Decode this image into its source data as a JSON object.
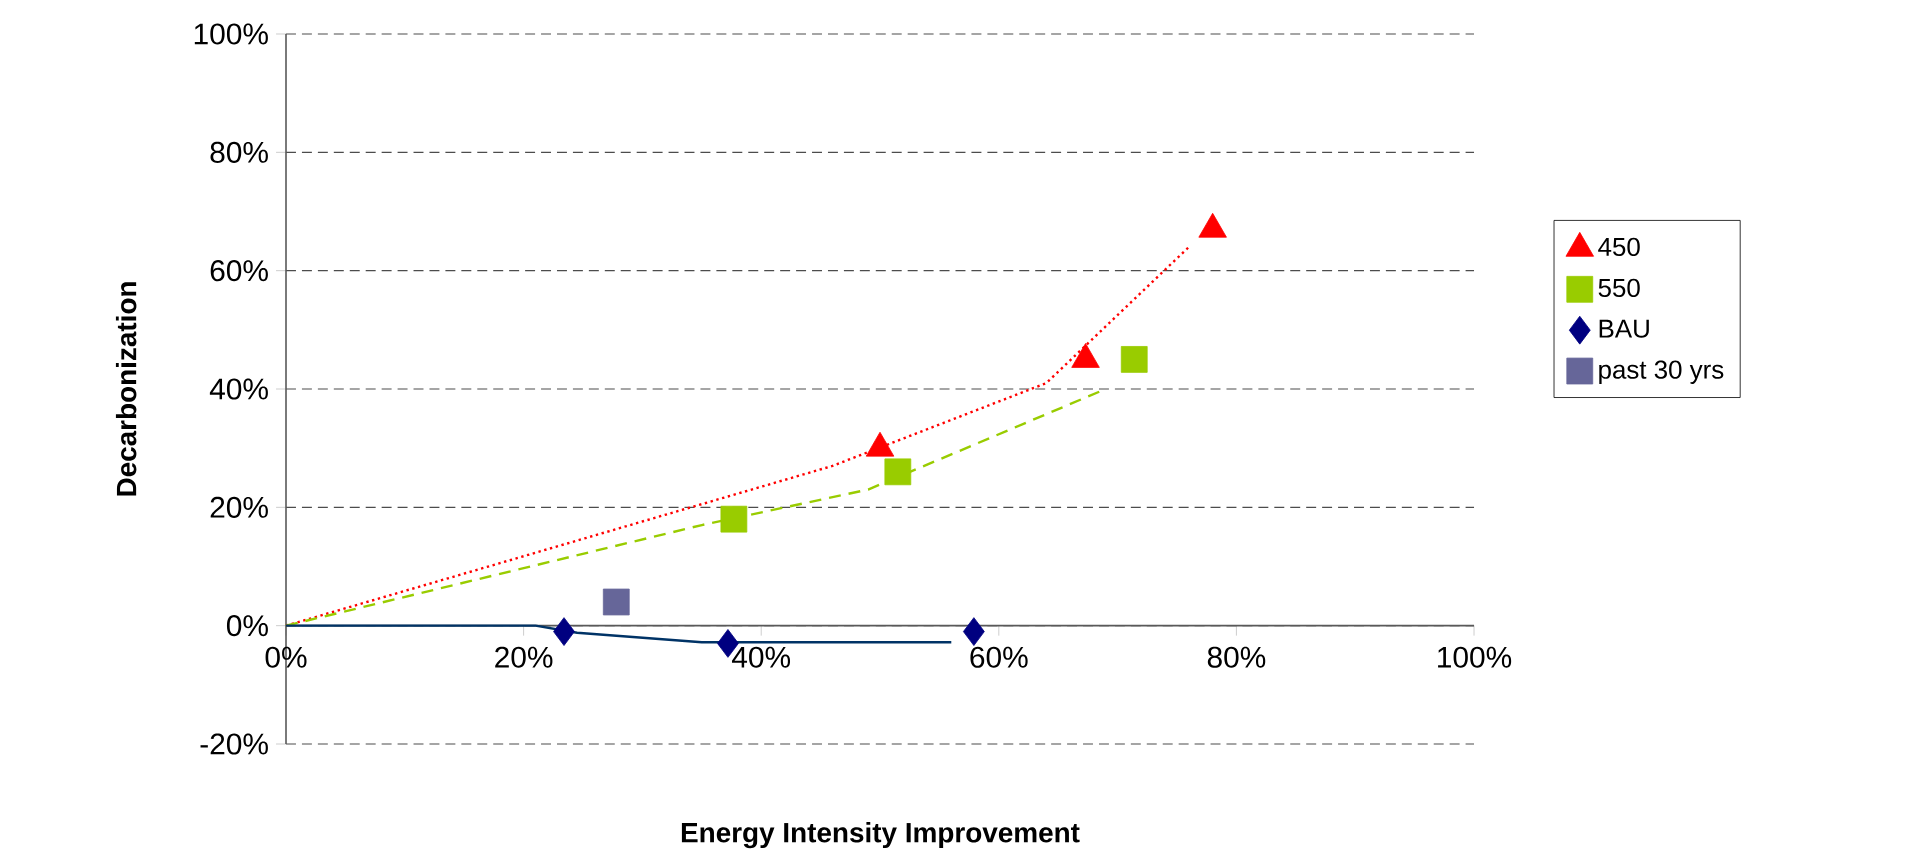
{
  "chart_data": {
    "type": "scatter",
    "xlabel": "Energy Intensity Improvement",
    "ylabel": "Decarbonization",
    "xlim": [
      0,
      100
    ],
    "ylim": [
      -20,
      100
    ],
    "xticks": [
      {
        "value": 0,
        "label": "0%"
      },
      {
        "value": 20,
        "label": "20%"
      },
      {
        "value": 40,
        "label": "40%"
      },
      {
        "value": 60,
        "label": "60%"
      },
      {
        "value": 80,
        "label": "80%"
      },
      {
        "value": 100,
        "label": "100%"
      }
    ],
    "yticks": [
      {
        "value": -20,
        "label": "-20%"
      },
      {
        "value": 0,
        "label": "0%"
      },
      {
        "value": 20,
        "label": "20%"
      },
      {
        "value": 40,
        "label": "40%"
      },
      {
        "value": 60,
        "label": "60%"
      },
      {
        "value": 80,
        "label": "80%"
      },
      {
        "value": 100,
        "label": "100%"
      }
    ],
    "grid": "y",
    "legend": "right",
    "series": [
      {
        "name": "450",
        "color": "#ff0000",
        "marker": "triangle",
        "x": [
          50,
          67.3,
          78
        ],
        "values": [
          30,
          45,
          67
        ]
      },
      {
        "name": "550",
        "color": "#99cc00",
        "marker": "square",
        "x": [
          37.7,
          51.5,
          71.4
        ],
        "values": [
          18,
          26,
          45
        ]
      },
      {
        "name": "BAU",
        "color": "#000080",
        "marker": "diamond",
        "x": [
          23.4,
          37.2,
          57.9
        ],
        "values": [
          -1,
          -3,
          -1
        ]
      },
      {
        "name": "past 30 yrs",
        "color": "#666699",
        "marker": "square",
        "x": [
          27.8
        ],
        "values": [
          4
        ]
      },
      {
        "type": "line",
        "color": "#ff0000",
        "line_style": "dotted",
        "marker": "none",
        "x": [
          0,
          46,
          64,
          76
        ],
        "values": [
          0,
          27,
          41,
          64
        ]
      },
      {
        "type": "line",
        "color": "#99cc00",
        "line_style": "dashed",
        "marker": "none",
        "x": [
          0,
          35,
          49,
          69
        ],
        "values": [
          0,
          17,
          23,
          40
        ]
      },
      {
        "type": "line",
        "color": "#003366",
        "line_style": "solid",
        "marker": "none",
        "x": [
          0,
          21,
          24.5,
          35,
          38.5,
          56
        ],
        "values": [
          0,
          0,
          -1.2,
          -2.8,
          -2.8,
          -2.8
        ]
      }
    ]
  }
}
